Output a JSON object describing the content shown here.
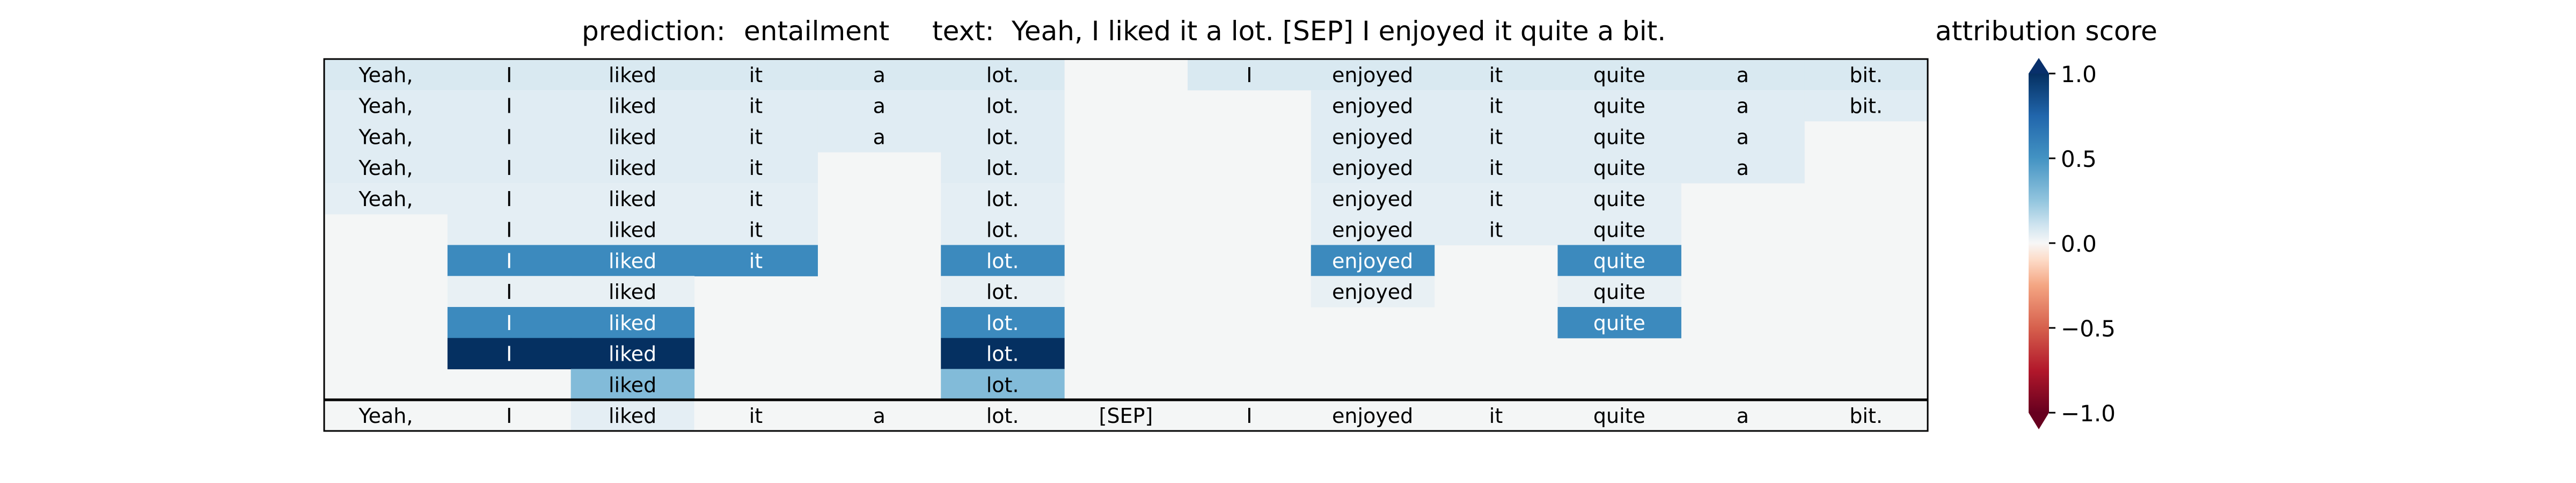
{
  "chart_data": {
    "type": "heatmap",
    "title": {
      "prediction_label": "prediction:",
      "prediction_value": "entailment",
      "text_label": "text:",
      "text_value": "Yeah, I liked it a lot. [SEP] I enjoyed it quite a bit."
    },
    "tokens": [
      "Yeah,",
      "I",
      "liked",
      "it",
      "a",
      "lot.",
      "[SEP]",
      "I",
      "enjoyed",
      "it",
      "quite",
      "a",
      "bit."
    ],
    "rows": [
      [
        0.08,
        0.08,
        0.08,
        0.08,
        0.08,
        0.08,
        null,
        0.08,
        0.08,
        0.08,
        0.08,
        0.08,
        0.08
      ],
      [
        0.06,
        0.06,
        0.06,
        0.06,
        0.06,
        0.06,
        null,
        null,
        0.06,
        0.06,
        0.06,
        0.06,
        0.06
      ],
      [
        0.06,
        0.06,
        0.06,
        0.06,
        0.06,
        0.06,
        null,
        null,
        0.06,
        0.06,
        0.06,
        0.06,
        null
      ],
      [
        0.06,
        0.06,
        0.06,
        0.06,
        null,
        0.06,
        null,
        null,
        0.06,
        0.06,
        0.06,
        0.06,
        null
      ],
      [
        0.05,
        0.05,
        0.05,
        0.05,
        null,
        0.05,
        null,
        null,
        0.05,
        0.05,
        0.05,
        null,
        null
      ],
      [
        null,
        0.05,
        0.05,
        0.05,
        null,
        0.05,
        null,
        null,
        0.05,
        0.05,
        0.05,
        null,
        null
      ],
      [
        null,
        0.55,
        0.55,
        0.55,
        null,
        0.55,
        null,
        null,
        0.55,
        null,
        0.55,
        null,
        null
      ],
      [
        null,
        0.04,
        0.04,
        null,
        null,
        0.04,
        null,
        null,
        0.04,
        null,
        0.04,
        null,
        null
      ],
      [
        null,
        0.55,
        0.55,
        null,
        null,
        0.55,
        null,
        null,
        null,
        null,
        0.55,
        null,
        null
      ],
      [
        null,
        1.0,
        1.0,
        null,
        null,
        1.0,
        null,
        null,
        null,
        null,
        null,
        null,
        null
      ],
      [
        null,
        null,
        0.3,
        null,
        null,
        0.3,
        null,
        null,
        null,
        null,
        null,
        null,
        null
      ]
    ],
    "bottom_row": [
      0.0,
      0.0,
      0.05,
      0.0,
      0.0,
      0.0,
      0.0,
      0.0,
      0.0,
      0.0,
      0.0,
      0.0,
      0.0
    ],
    "empty_color": "#f4f6f6",
    "colorbar": {
      "label": "attribution score",
      "range": [
        -1.0,
        1.0
      ],
      "ticks": [
        1.0,
        0.5,
        0.0,
        -0.5,
        -1.0
      ],
      "tick_labels": [
        "1.0",
        "0.5",
        "0.0",
        "−0.5",
        "−1.0"
      ],
      "colormap": "RdBu",
      "extend": "both"
    }
  }
}
